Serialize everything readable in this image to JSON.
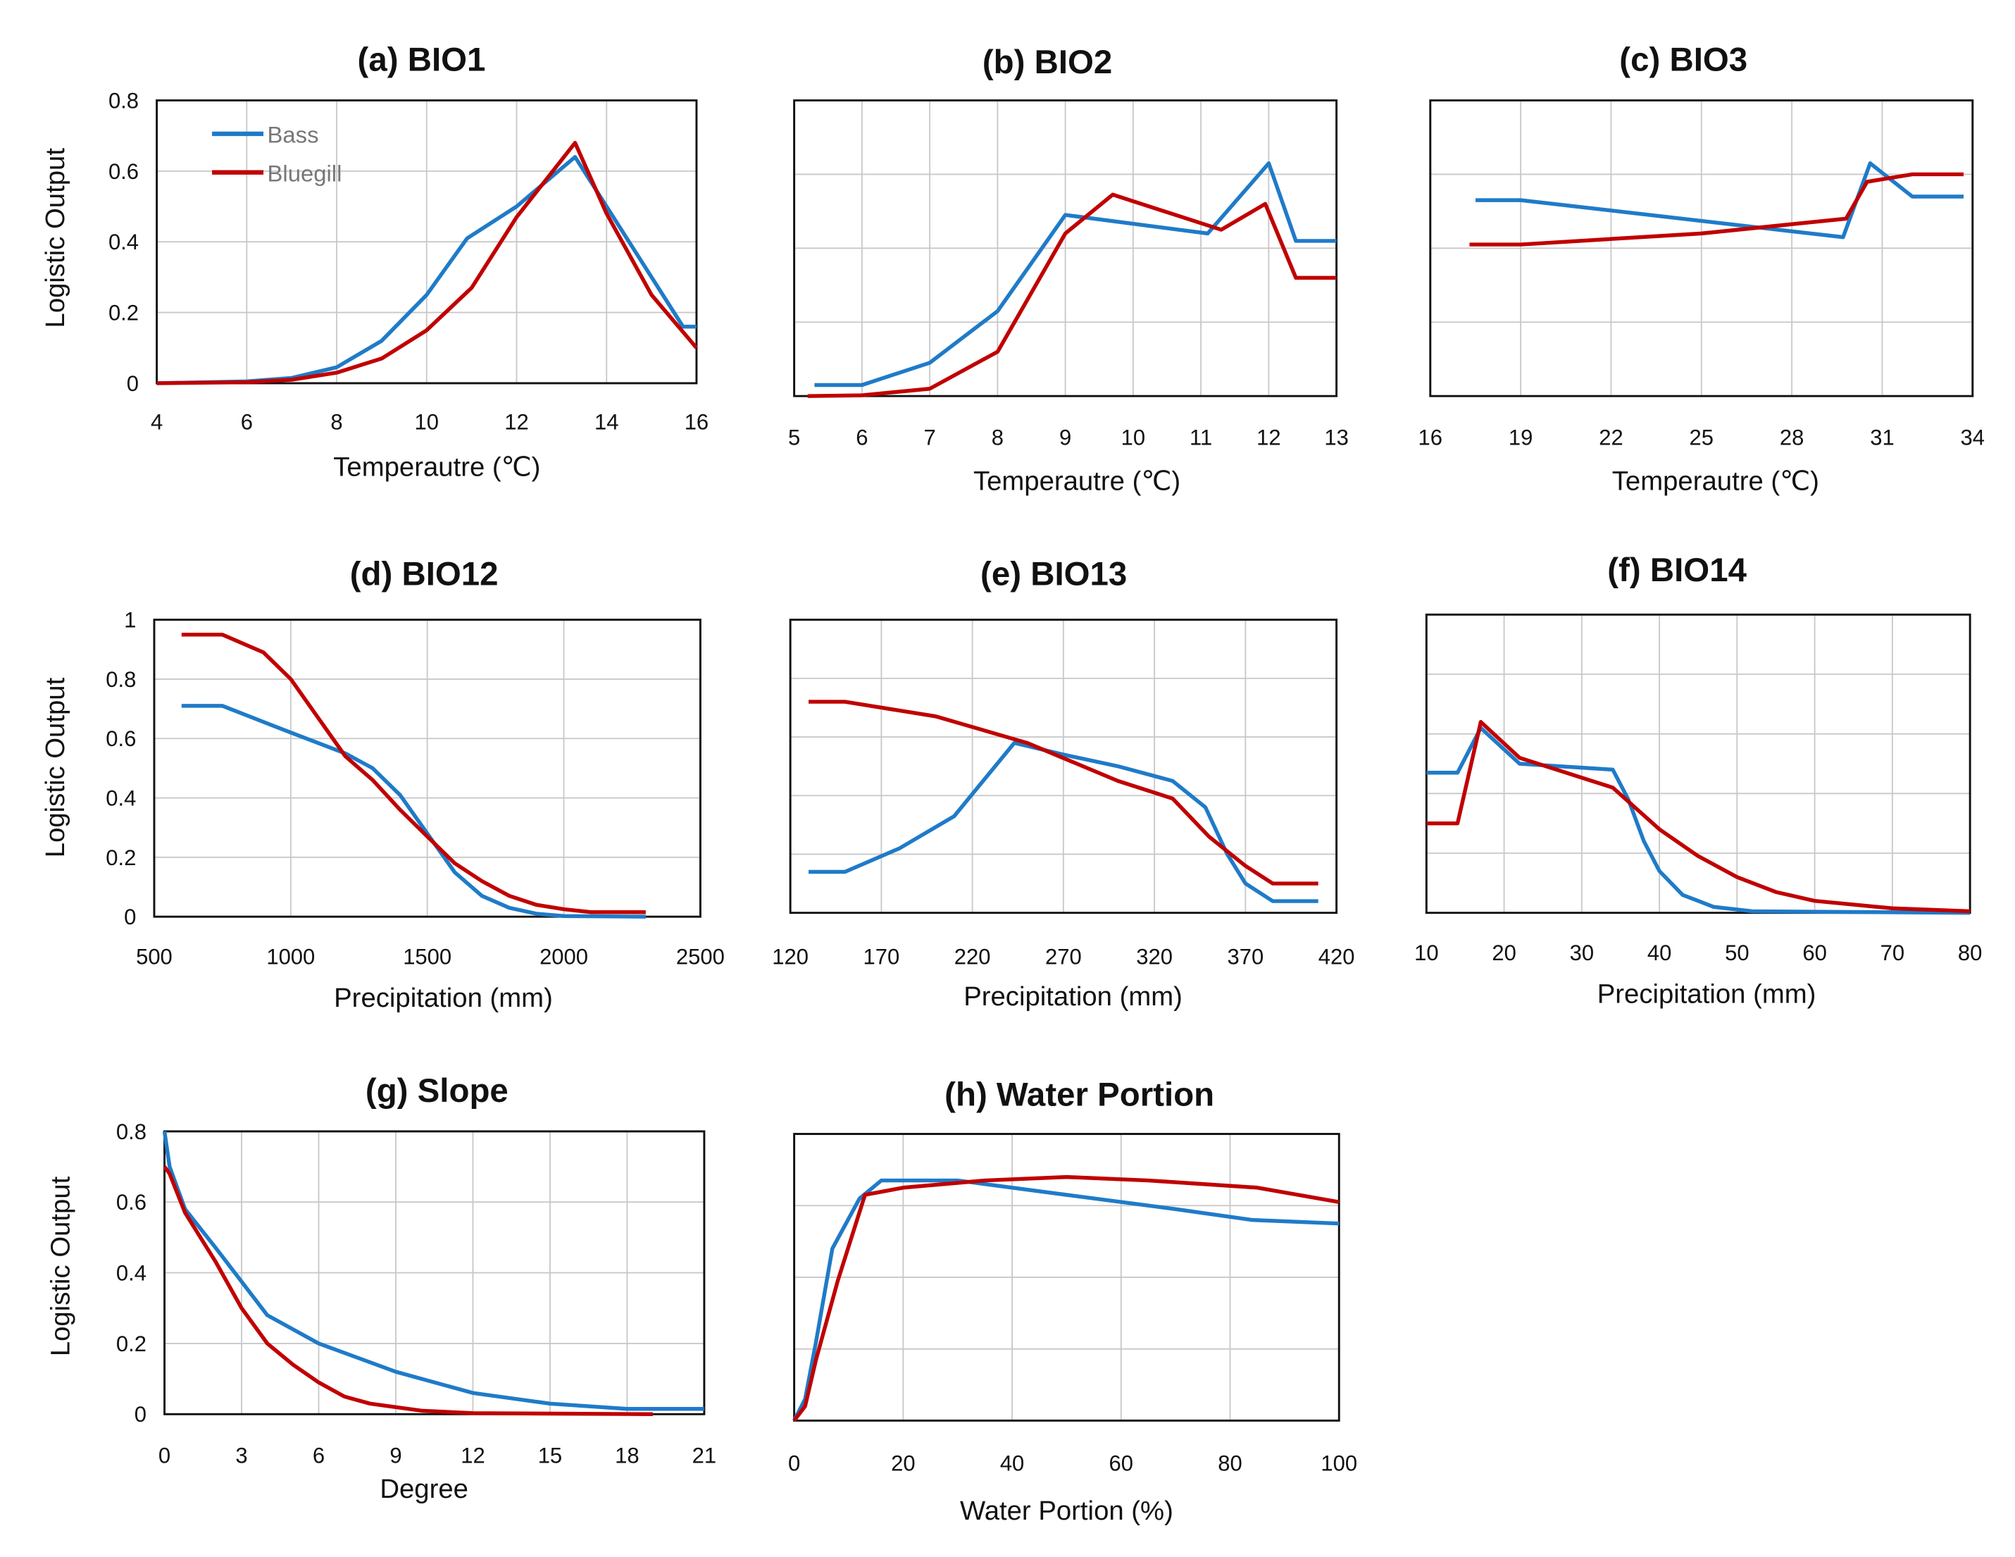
{
  "colors": {
    "Bass": "#1f7bc8",
    "Bluegill": "#c00000"
  },
  "legend": [
    "Bass",
    "Bluegill"
  ],
  "chart_data": [
    {
      "type": "line",
      "title": "(a) BIO1",
      "xlabel": "Temperautre (℃)",
      "ylabel": "Logistic Output",
      "xlim": [
        4,
        16
      ],
      "xticks": [
        4,
        6,
        8,
        10,
        12,
        14,
        16
      ],
      "ylim": [
        0,
        0.8
      ],
      "yticks": [
        0,
        0.2,
        0.4,
        0.6,
        0.8
      ],
      "ytick_labels": true,
      "grid": true,
      "legend": "top-left",
      "series": [
        {
          "name": "Bass",
          "x": [
            4,
            6,
            7,
            8,
            9,
            10,
            10.9,
            12,
            13.3,
            14,
            15,
            15.7,
            16
          ],
          "y": [
            0,
            0.005,
            0.015,
            0.045,
            0.12,
            0.25,
            0.41,
            0.5,
            0.64,
            0.5,
            0.3,
            0.16,
            0.16
          ]
        },
        {
          "name": "Bluegill",
          "x": [
            4,
            6,
            7,
            8,
            9,
            10,
            11,
            12,
            13.3,
            14,
            15,
            16
          ],
          "y": [
            0,
            0.003,
            0.01,
            0.03,
            0.07,
            0.15,
            0.27,
            0.47,
            0.68,
            0.48,
            0.25,
            0.1
          ]
        }
      ]
    },
    {
      "type": "line",
      "title": "(b) BIO2",
      "xlabel": "Temperautre (℃)",
      "ylabel": "",
      "xlim": [
        5,
        13
      ],
      "xticks": [
        5,
        6,
        7,
        8,
        9,
        10,
        11,
        12,
        13
      ],
      "ylim": [
        0,
        0.8
      ],
      "yticks": [
        0,
        0.2,
        0.4,
        0.6,
        0.8
      ],
      "ytick_labels": false,
      "grid": true,
      "series": [
        {
          "name": "Bass",
          "x": [
            5.3,
            6,
            7,
            8,
            9,
            11.1,
            12,
            12.4,
            13
          ],
          "y": [
            0.03,
            0.03,
            0.09,
            0.23,
            0.49,
            0.44,
            0.63,
            0.42,
            0.42
          ]
        },
        {
          "name": "Bluegill",
          "x": [
            5.2,
            6,
            7,
            8,
            9,
            9.7,
            11.3,
            11.95,
            12.4,
            13
          ],
          "y": [
            0,
            0.002,
            0.02,
            0.12,
            0.44,
            0.545,
            0.45,
            0.52,
            0.32,
            0.32
          ]
        }
      ]
    },
    {
      "type": "line",
      "title": "(c) BIO3",
      "xlabel": "Temperautre (℃)",
      "ylabel": "",
      "xlim": [
        16,
        34
      ],
      "xticks": [
        16,
        19,
        22,
        25,
        28,
        31,
        34
      ],
      "ylim": [
        0,
        0.8
      ],
      "yticks": [
        0,
        0.2,
        0.4,
        0.6,
        0.8
      ],
      "ytick_labels": false,
      "grid": true,
      "series": [
        {
          "name": "Bass",
          "x": [
            17.5,
            19,
            29.7,
            30.6,
            32,
            33.7
          ],
          "y": [
            0.53,
            0.53,
            0.43,
            0.63,
            0.54,
            0.54
          ]
        },
        {
          "name": "Bluegill",
          "x": [
            17.3,
            19,
            25,
            29.8,
            30.5,
            32,
            33.7
          ],
          "y": [
            0.41,
            0.41,
            0.44,
            0.48,
            0.58,
            0.6,
            0.6
          ]
        }
      ]
    },
    {
      "type": "line",
      "title": "(d) BIO12",
      "xlabel": "Precipitation (mm)",
      "ylabel": "Logistic Output",
      "xlim": [
        500,
        2500
      ],
      "xticks": [
        500,
        1000,
        1500,
        2000,
        2500
      ],
      "ylim": [
        0,
        1
      ],
      "yticks": [
        0,
        0.2,
        0.4,
        0.6,
        0.8,
        1
      ],
      "ytick_labels": true,
      "grid": true,
      "series": [
        {
          "name": "Bass",
          "x": [
            600,
            750,
            1000,
            1200,
            1300,
            1400,
            1500,
            1600,
            1700,
            1800,
            1900,
            2000,
            2300
          ],
          "y": [
            0.71,
            0.71,
            0.62,
            0.55,
            0.5,
            0.41,
            0.28,
            0.15,
            0.07,
            0.03,
            0.01,
            0.002,
            0
          ]
        },
        {
          "name": "Bluegill",
          "x": [
            600,
            750,
            900,
            1000,
            1100,
            1200,
            1300,
            1400,
            1500,
            1600,
            1700,
            1800,
            1900,
            2000,
            2100,
            2300
          ],
          "y": [
            0.95,
            0.95,
            0.89,
            0.8,
            0.67,
            0.54,
            0.46,
            0.36,
            0.27,
            0.18,
            0.12,
            0.07,
            0.04,
            0.025,
            0.015,
            0.015
          ]
        }
      ]
    },
    {
      "type": "line",
      "title": "(e) BIO13",
      "xlabel": "Precipitation (mm)",
      "ylabel": "",
      "xlim": [
        120,
        420
      ],
      "xticks": [
        120,
        170,
        220,
        270,
        320,
        370,
        420
      ],
      "ylim": [
        0,
        1
      ],
      "yticks": [
        0,
        0.2,
        0.4,
        0.6,
        0.8,
        1
      ],
      "ytick_labels": false,
      "grid": true,
      "series": [
        {
          "name": "Bass",
          "x": [
            130,
            150,
            180,
            210,
            243,
            270,
            300,
            330,
            348,
            360,
            370,
            385,
            410
          ],
          "y": [
            0.14,
            0.14,
            0.22,
            0.33,
            0.58,
            0.54,
            0.5,
            0.45,
            0.36,
            0.2,
            0.1,
            0.04,
            0.04
          ]
        },
        {
          "name": "Bluegill",
          "x": [
            130,
            150,
            200,
            250,
            300,
            330,
            350,
            370,
            385,
            410
          ],
          "y": [
            0.72,
            0.72,
            0.67,
            0.58,
            0.45,
            0.39,
            0.26,
            0.16,
            0.1,
            0.1
          ]
        }
      ]
    },
    {
      "type": "line",
      "title": "(f) BIO14",
      "xlabel": "Precipitation (mm)",
      "ylabel": "",
      "xlim": [
        10,
        80
      ],
      "xticks": [
        10,
        20,
        30,
        40,
        50,
        60,
        70,
        80
      ],
      "ylim": [
        0,
        1
      ],
      "yticks": [
        0,
        0.2,
        0.4,
        0.6,
        0.8,
        1
      ],
      "ytick_labels": false,
      "grid": true,
      "series": [
        {
          "name": "Bass",
          "x": [
            10,
            14,
            17,
            22,
            34,
            36,
            38,
            40,
            43,
            47,
            52,
            80
          ],
          "y": [
            0.47,
            0.47,
            0.62,
            0.5,
            0.48,
            0.38,
            0.24,
            0.14,
            0.06,
            0.02,
            0.005,
            0
          ]
        },
        {
          "name": "Bluegill",
          "x": [
            10,
            14,
            17,
            22,
            34,
            40,
            45,
            50,
            55,
            60,
            70,
            80
          ],
          "y": [
            0.3,
            0.3,
            0.64,
            0.52,
            0.42,
            0.28,
            0.19,
            0.12,
            0.07,
            0.04,
            0.015,
            0.005
          ]
        }
      ]
    },
    {
      "type": "line",
      "title": "(g) Slope",
      "xlabel": "Degree",
      "ylabel": "Logistic Output",
      "xlim": [
        0,
        21
      ],
      "xticks": [
        0,
        3,
        6,
        9,
        12,
        15,
        18,
        21
      ],
      "ylim": [
        0,
        0.8
      ],
      "yticks": [
        0,
        0.2,
        0.4,
        0.6,
        0.8
      ],
      "ytick_labels": true,
      "grid": true,
      "series": [
        {
          "name": "Bass",
          "x": [
            0,
            0.2,
            0.8,
            2,
            4,
            6,
            9,
            12,
            15,
            18,
            21
          ],
          "y": [
            0.8,
            0.7,
            0.58,
            0.47,
            0.28,
            0.2,
            0.12,
            0.06,
            0.03,
            0.015,
            0.015
          ]
        },
        {
          "name": "Bluegill",
          "x": [
            0,
            0.2,
            0.8,
            2,
            3,
            4,
            5,
            6,
            7,
            8,
            10,
            12,
            19
          ],
          "y": [
            0.7,
            0.68,
            0.57,
            0.43,
            0.3,
            0.2,
            0.14,
            0.09,
            0.05,
            0.03,
            0.01,
            0.003,
            0
          ]
        }
      ]
    },
    {
      "type": "line",
      "title": "(h) Water Portion",
      "xlabel": "Water Portion (%)",
      "ylabel": "",
      "xlim": [
        0,
        100
      ],
      "xticks": [
        0,
        20,
        40,
        60,
        80,
        100
      ],
      "ylim": [
        0,
        0.8
      ],
      "yticks": [
        0,
        0.2,
        0.4,
        0.6,
        0.8
      ],
      "ytick_labels": false,
      "grid": true,
      "series": [
        {
          "name": "Bass",
          "x": [
            0,
            2,
            4,
            7,
            12,
            16,
            30,
            50,
            70,
            84,
            100
          ],
          "y": [
            0,
            0.06,
            0.22,
            0.48,
            0.62,
            0.67,
            0.67,
            0.63,
            0.59,
            0.56,
            0.55
          ]
        },
        {
          "name": "Bluegill",
          "x": [
            0,
            2,
            4,
            8,
            13,
            20,
            35,
            50,
            65,
            85,
            100
          ],
          "y": [
            0,
            0.04,
            0.17,
            0.39,
            0.63,
            0.65,
            0.67,
            0.68,
            0.67,
            0.65,
            0.61
          ]
        }
      ]
    }
  ]
}
